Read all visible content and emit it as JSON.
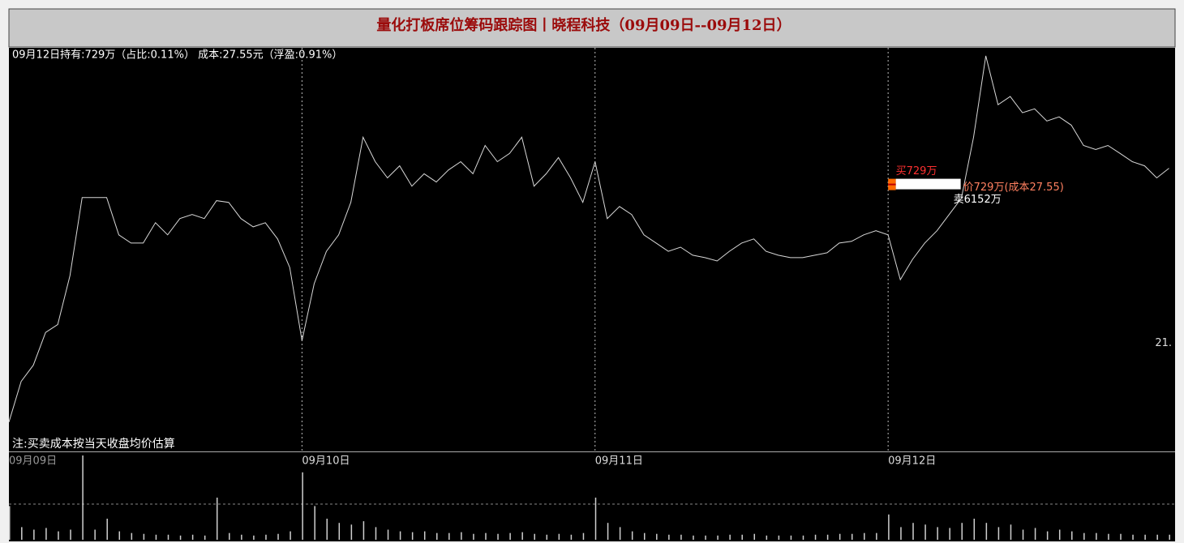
{
  "chart_data": [
    {
      "type": "line",
      "title": "量化打板席位筹码跟踪图丨晓程科技（09月09日--09月12日）",
      "subtitle": "09月12日持有:729万（占比:0.11%） 成本:27.55元（浮盈:0.91%）",
      "note": "注:买卖成本按当天收盘均价估算",
      "color": "#d8d8d8",
      "x": [
        0,
        10,
        20,
        30,
        40,
        50,
        60,
        70,
        80,
        90,
        100,
        110,
        120,
        130,
        140,
        150,
        160,
        170,
        180,
        190,
        200,
        210,
        220,
        230,
        240,
        250,
        260,
        270,
        280,
        290,
        300,
        310,
        320,
        330,
        340,
        350,
        360,
        370,
        380,
        390,
        400,
        410,
        420,
        430,
        440,
        450,
        460,
        470,
        480,
        490,
        500,
        510,
        520,
        530,
        540,
        550,
        560,
        570,
        580,
        590,
        600,
        610,
        620,
        630,
        640,
        650,
        660,
        670,
        680,
        690,
        700,
        710,
        720,
        730,
        740,
        750,
        760,
        770,
        780,
        790,
        800,
        810,
        820,
        830,
        840,
        850,
        860,
        870,
        880,
        890,
        900,
        910,
        920,
        930,
        940,
        950
      ],
      "values": [
        17.74,
        19.42,
        20.09,
        21.44,
        21.77,
        23.79,
        27.01,
        27.01,
        27.01,
        25.47,
        25.13,
        25.13,
        25.97,
        25.47,
        26.14,
        26.31,
        26.14,
        26.88,
        26.81,
        26.14,
        25.8,
        25.97,
        25.3,
        24.12,
        21.1,
        23.45,
        24.79,
        25.47,
        26.81,
        29.5,
        28.49,
        27.82,
        28.32,
        27.48,
        27.99,
        27.65,
        28.15,
        28.49,
        27.99,
        29.16,
        28.49,
        28.83,
        29.5,
        27.48,
        27.99,
        28.66,
        27.82,
        26.81,
        28.49,
        26.14,
        26.64,
        26.31,
        25.47,
        25.13,
        24.79,
        24.96,
        24.63,
        24.53,
        24.39,
        24.79,
        25.13,
        25.3,
        24.79,
        24.63,
        24.53,
        24.53,
        24.63,
        24.73,
        25.13,
        25.2,
        25.47,
        25.64,
        25.47,
        23.62,
        24.46,
        25.13,
        25.64,
        26.31,
        26.98,
        29.5,
        32.86,
        30.84,
        31.18,
        30.51,
        30.67,
        30.17,
        30.34,
        30.0,
        29.16,
        28.99,
        29.16,
        28.83,
        28.49,
        28.32,
        27.82,
        28.22
      ],
      "xlim": [
        0,
        955
      ],
      "xticks": [
        {
          "value": 0,
          "label": "09月09日"
        },
        {
          "value": 240,
          "label": "09月10日"
        },
        {
          "value": 480,
          "label": "09月11日"
        },
        {
          "value": 720,
          "label": "09月12日"
        }
      ],
      "ylim": [
        16.53,
        33.19
      ],
      "yticks": [
        {
          "value": 21,
          "label": "21."
        }
      ],
      "chip": {
        "x": 720,
        "cost": 27.55,
        "buy": 729,
        "sell": 6152,
        "buy_label": "买729万",
        "sell_label": "卖6152万",
        "hold_label": "价729万(成本27.55)",
        "buy_color": "#ff6a00",
        "sell_color": "#ffffff"
      }
    },
    {
      "type": "bar",
      "color": "#cfcfcf",
      "x": [
        0,
        10,
        20,
        30,
        40,
        50,
        60,
        70,
        80,
        90,
        100,
        110,
        120,
        130,
        140,
        150,
        160,
        170,
        180,
        190,
        200,
        210,
        220,
        230,
        240,
        250,
        260,
        270,
        280,
        290,
        300,
        310,
        320,
        330,
        340,
        350,
        360,
        370,
        380,
        390,
        400,
        410,
        420,
        430,
        440,
        450,
        460,
        470,
        480,
        490,
        500,
        510,
        520,
        530,
        540,
        550,
        560,
        570,
        580,
        590,
        600,
        610,
        620,
        630,
        640,
        650,
        660,
        670,
        680,
        690,
        700,
        710,
        720,
        730,
        740,
        750,
        760,
        770,
        780,
        790,
        800,
        810,
        820,
        830,
        840,
        850,
        860,
        870,
        880,
        890,
        900,
        910,
        920,
        930,
        940,
        950
      ],
      "values": [
        40,
        15,
        12,
        14,
        10,
        12,
        100,
        12,
        25,
        10,
        8,
        7,
        6,
        6,
        5,
        6,
        5,
        50,
        8,
        6,
        5,
        6,
        7,
        10,
        80,
        40,
        25,
        20,
        18,
        22,
        15,
        12,
        10,
        9,
        10,
        8,
        8,
        9,
        7,
        8,
        7,
        8,
        9,
        7,
        6,
        7,
        6,
        8,
        50,
        20,
        15,
        10,
        8,
        7,
        6,
        6,
        5,
        5,
        5,
        6,
        6,
        7,
        5,
        5,
        5,
        5,
        6,
        6,
        7,
        7,
        8,
        8,
        30,
        15,
        20,
        18,
        15,
        14,
        20,
        25,
        20,
        15,
        18,
        12,
        14,
        10,
        12,
        10,
        8,
        8,
        7,
        7,
        6,
        6,
        6,
        6
      ],
      "xlim": [
        0,
        955
      ],
      "ylim": [
        0,
        100
      ]
    }
  ]
}
